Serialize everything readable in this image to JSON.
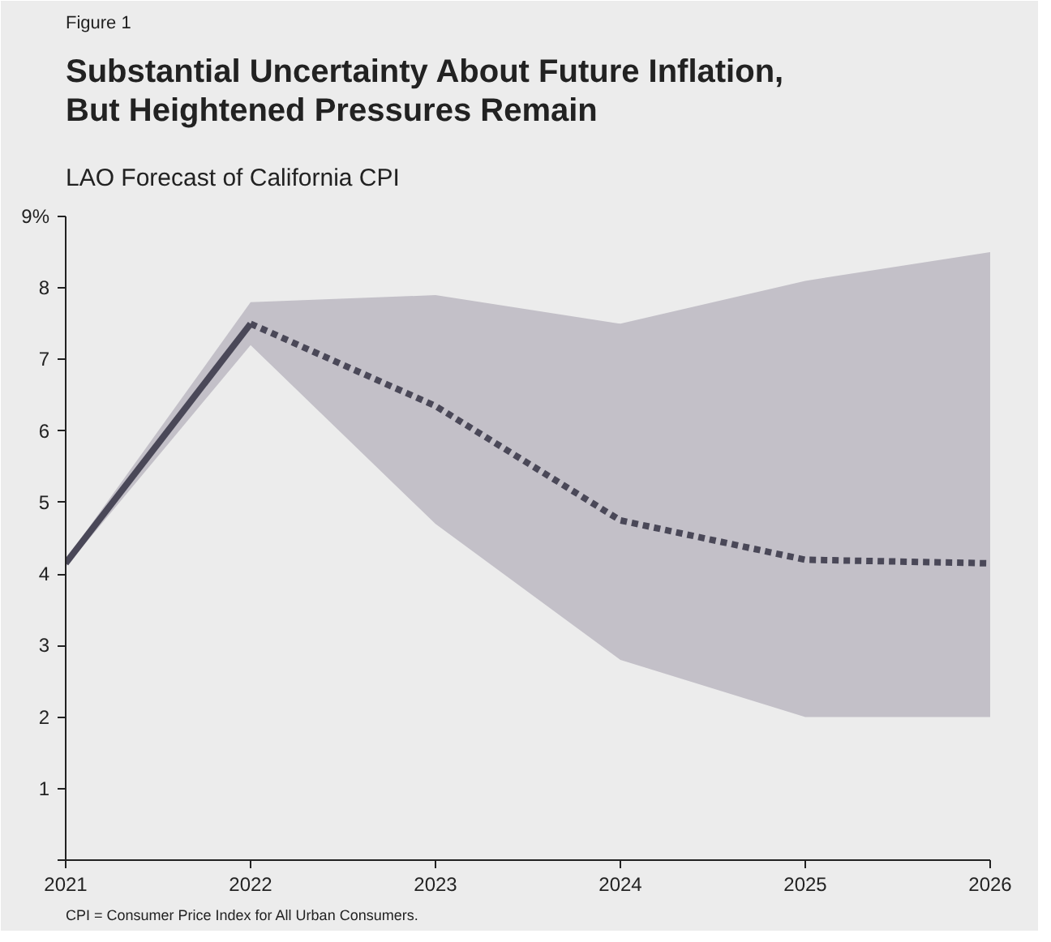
{
  "chart_data": {
    "type": "line",
    "title": "Substantial Uncertainty About Future Inflation, But Heightened Pressures Remain",
    "subtitle": "LAO Forecast of California CPI",
    "annotations": [
      "Figure 1",
      "CPI = Consumer Price Index for All Urban Consumers."
    ],
    "series": [
      {
        "x": [
          2021,
          2022
        ],
        "values": [
          4.15,
          7.5
        ],
        "color": "#4a4858",
        "line_style": "solid",
        "lower": [
          4.1,
          7.2
        ],
        "upper": [
          4.2,
          7.8
        ]
      },
      {
        "x": [
          2022,
          2023,
          2024,
          2025,
          2026
        ],
        "values": [
          7.5,
          6.35,
          4.75,
          4.2,
          4.15
        ],
        "color": "#4a4858",
        "line_style": "dashed",
        "lower": [
          7.2,
          4.7,
          2.8,
          2.0,
          2.0
        ],
        "upper": [
          7.8,
          7.9,
          7.5,
          8.1,
          8.5
        ]
      }
    ],
    "xlim": [
      2021,
      2026
    ],
    "xticks": [
      2021,
      2022,
      2023,
      2024,
      2025,
      2026
    ],
    "ylim": [
      0,
      9
    ],
    "yticks": [
      {
        "value": 0,
        "label": null
      },
      1,
      2,
      3,
      4,
      5,
      6,
      7,
      8,
      {
        "value": 9,
        "label": "9%"
      }
    ],
    "grid": false,
    "marker": "none"
  }
}
